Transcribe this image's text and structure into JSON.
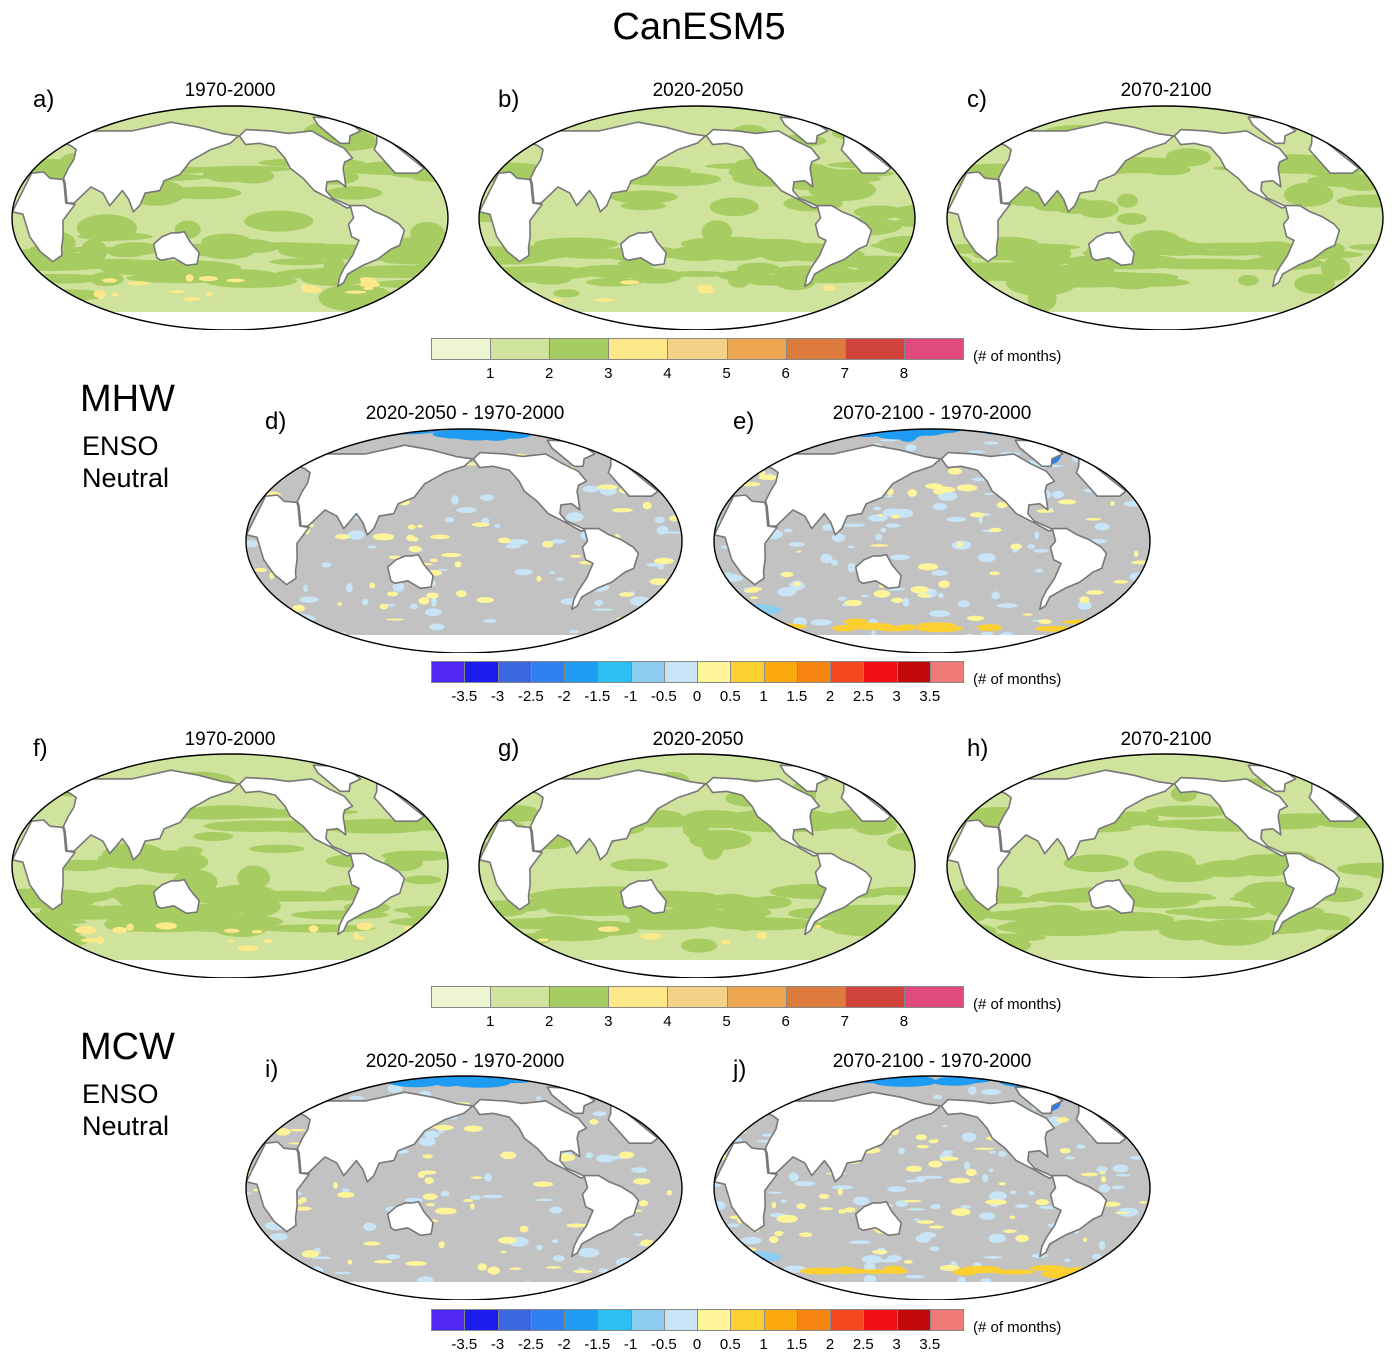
{
  "title": "CanESM5",
  "side_labels": {
    "mhw": {
      "name": "MHW",
      "line1": "ENSO",
      "line2": "Neutral"
    },
    "mcw": {
      "name": "MCW",
      "line1": "ENSO",
      "line2": "Neutral"
    }
  },
  "panels": [
    {
      "label": "a)",
      "title": "1970-2000",
      "kind": "abs",
      "yellow": 0.1
    },
    {
      "label": "b)",
      "title": "2020-2050",
      "kind": "abs",
      "yellow": 0.03
    },
    {
      "label": "c)",
      "title": "2070-2100",
      "kind": "abs",
      "yellow": 0.0
    },
    {
      "label": "d)",
      "title": "2020-2050 - 1970-2000",
      "kind": "diff",
      "pos": 0.15,
      "neg": 0.18
    },
    {
      "label": "e)",
      "title": "2070-2100 - 1970-2000",
      "kind": "diff",
      "pos": 0.18,
      "neg": 0.3
    },
    {
      "label": "f)",
      "title": "1970-2000",
      "kind": "abs",
      "yellow": 0.08
    },
    {
      "label": "g)",
      "title": "2020-2050",
      "kind": "abs",
      "yellow": 0.03
    },
    {
      "label": "h)",
      "title": "2070-2100",
      "kind": "abs",
      "yellow": 0.0
    },
    {
      "label": "i)",
      "title": "2020-2050 - 1970-2000",
      "kind": "diff",
      "pos": 0.18,
      "neg": 0.15
    },
    {
      "label": "j)",
      "title": "2070-2100 - 1970-2000",
      "kind": "diff",
      "pos": 0.2,
      "neg": 0.32
    }
  ],
  "colorbar_abs": {
    "colors": [
      "#eef5d2",
      "#cfe39d",
      "#a6cc62",
      "#fde98a",
      "#f4d189",
      "#eca551",
      "#dd7b3c",
      "#d1443b",
      "#e04a7e"
    ],
    "ticks": [
      "1",
      "2",
      "3",
      "4",
      "5",
      "6",
      "7",
      "8"
    ],
    "unit": "(# of months)"
  },
  "colorbar_diff": {
    "colors": [
      "#5127f3",
      "#1a1cec",
      "#3b67e0",
      "#2f7ff0",
      "#1e9cf3",
      "#2cbff2",
      "#8cccef",
      "#c7e5f6",
      "#fef59a",
      "#fdd031",
      "#fca90d",
      "#f78510",
      "#f4481c",
      "#f00f15",
      "#c30a0a",
      "#ef7a76"
    ],
    "ticks": [
      "-3.5",
      "-3",
      "-2.5",
      "-2",
      "-1.5",
      "-1",
      "-0.5",
      "0",
      "0.5",
      "1",
      "1.5",
      "2",
      "2.5",
      "3",
      "3.5"
    ],
    "unit": "(# of months)"
  }
}
